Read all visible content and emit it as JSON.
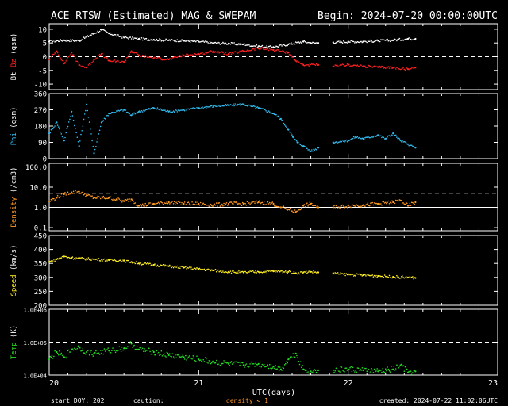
{
  "header": {
    "title": "ACE RTSW (Estimated) MAG & SWEPAM",
    "begin": "Begin: 2024-07-20 00:00:00UTC"
  },
  "footer": {
    "start_doy": "start DOY: 202",
    "caution": "caution:",
    "density_note": "density < 1",
    "created": "created: 2024-07-22 11:02:06UTC"
  },
  "colors": {
    "background": "#000000",
    "frame": "#ffffff",
    "bt": "#ffffff",
    "bz": "#ff2020",
    "phi": "#33bbee",
    "density": "#ff9922",
    "speed": "#ffee22",
    "temp": "#22dd22"
  },
  "chart_data": {
    "type": "scatter",
    "x_axis": {
      "label": "UTC(days)",
      "range_days": [
        20,
        23
      ],
      "ticks": [
        "20",
        "21",
        "22",
        "23"
      ]
    },
    "panels": [
      {
        "id": "mag",
        "ylabel_parts": [
          "Bt",
          "Bz",
          "(gsm)"
        ],
        "ylim": [
          -12,
          12
        ],
        "yticks": [
          10,
          5,
          0,
          -5,
          -10
        ],
        "ref_lines": [
          0
        ],
        "series": [
          {
            "name": "Bt",
            "color_key": "bt",
            "points": [
              [
                20.0,
                5.5
              ],
              [
                20.1,
                6.0
              ],
              [
                20.2,
                5.8
              ],
              [
                20.3,
                8.5
              ],
              [
                20.35,
                9.8
              ],
              [
                20.4,
                8.5
              ],
              [
                20.5,
                7.0
              ],
              [
                20.6,
                6.5
              ],
              [
                20.7,
                6.2
              ],
              [
                20.8,
                6.0
              ],
              [
                20.9,
                5.8
              ],
              [
                21.0,
                5.5
              ],
              [
                21.1,
                5.0
              ],
              [
                21.2,
                4.8
              ],
              [
                21.3,
                4.5
              ],
              [
                21.4,
                3.8
              ],
              [
                21.5,
                3.5
              ],
              [
                21.6,
                4.5
              ],
              [
                21.7,
                5.5
              ],
              [
                21.75,
                5.0
              ],
              [
                21.8,
                5.0
              ],
              [
                21.9,
                5.2
              ],
              [
                22.0,
                5.5
              ],
              [
                22.1,
                5.5
              ],
              [
                22.2,
                5.8
              ],
              [
                22.3,
                6.0
              ],
              [
                22.4,
                6.5
              ],
              [
                22.45,
                6.5
              ]
            ],
            "gaps_after_x": [
              21.8
            ]
          },
          {
            "name": "Bz",
            "color_key": "bz",
            "points": [
              [
                20.0,
                -1.0
              ],
              [
                20.05,
                2.0
              ],
              [
                20.1,
                -2.5
              ],
              [
                20.15,
                1.5
              ],
              [
                20.2,
                -3.0
              ],
              [
                20.25,
                -4.0
              ],
              [
                20.3,
                -1.0
              ],
              [
                20.35,
                1.0
              ],
              [
                20.4,
                -1.5
              ],
              [
                20.5,
                -2.0
              ],
              [
                20.55,
                2.0
              ],
              [
                20.6,
                0.5
              ],
              [
                20.7,
                -0.5
              ],
              [
                20.8,
                -1.0
              ],
              [
                20.9,
                0.5
              ],
              [
                21.0,
                1.0
              ],
              [
                21.1,
                2.0
              ],
              [
                21.2,
                1.0
              ],
              [
                21.3,
                2.0
              ],
              [
                21.4,
                3.0
              ],
              [
                21.5,
                2.5
              ],
              [
                21.6,
                1.5
              ],
              [
                21.65,
                -1.5
              ],
              [
                21.7,
                -3.0
              ],
              [
                21.8,
                -3.0
              ],
              [
                21.9,
                -3.5
              ],
              [
                22.0,
                -3.0
              ],
              [
                22.1,
                -3.5
              ],
              [
                22.2,
                -3.8
              ],
              [
                22.3,
                -4.0
              ],
              [
                22.4,
                -4.5
              ],
              [
                22.45,
                -4.0
              ]
            ],
            "gaps_after_x": [
              21.8
            ]
          }
        ]
      },
      {
        "id": "phi",
        "ylabel_parts": [
          "Phi",
          "(gsm)"
        ],
        "ylim": [
          0,
          360
        ],
        "yticks": [
          360,
          270,
          180,
          90,
          0
        ],
        "ref_lines": [],
        "series": [
          {
            "name": "Phi",
            "color_key": "phi",
            "points": [
              [
                20.0,
                140
              ],
              [
                20.05,
                200
              ],
              [
                20.1,
                100
              ],
              [
                20.15,
                260
              ],
              [
                20.2,
                70
              ],
              [
                20.25,
                300
              ],
              [
                20.3,
                30
              ],
              [
                20.35,
                200
              ],
              [
                20.4,
                250
              ],
              [
                20.5,
                270
              ],
              [
                20.55,
                240
              ],
              [
                20.6,
                260
              ],
              [
                20.7,
                280
              ],
              [
                20.8,
                260
              ],
              [
                20.9,
                270
              ],
              [
                21.0,
                280
              ],
              [
                21.1,
                290
              ],
              [
                21.2,
                295
              ],
              [
                21.3,
                300
              ],
              [
                21.4,
                280
              ],
              [
                21.5,
                250
              ],
              [
                21.55,
                220
              ],
              [
                21.6,
                160
              ],
              [
                21.63,
                120
              ],
              [
                21.66,
                90
              ],
              [
                21.7,
                70
              ],
              [
                21.75,
                40
              ],
              [
                21.8,
                60
              ],
              [
                21.9,
                90
              ],
              [
                22.0,
                100
              ],
              [
                22.05,
                120
              ],
              [
                22.1,
                110
              ],
              [
                22.2,
                130
              ],
              [
                22.25,
                110
              ],
              [
                22.3,
                140
              ],
              [
                22.35,
                100
              ],
              [
                22.4,
                80
              ],
              [
                22.45,
                60
              ]
            ],
            "gaps_after_x": [
              21.8
            ]
          }
        ]
      },
      {
        "id": "density",
        "ylabel_parts": [
          "Density",
          "(/cm3)"
        ],
        "yscale": "log",
        "ylim": [
          0.07,
          150
        ],
        "yticks": [
          100.0,
          10.0,
          1.0,
          0.1
        ],
        "ytick_labels": [
          "100.0",
          "10.0",
          "1.0",
          "0.1"
        ],
        "ref_lines": [
          5,
          1
        ],
        "series": [
          {
            "name": "Density",
            "color_key": "density",
            "points": [
              [
                20.0,
                2.0
              ],
              [
                20.05,
                3.0
              ],
              [
                20.1,
                4.5
              ],
              [
                20.15,
                5.5
              ],
              [
                20.2,
                6.0
              ],
              [
                20.25,
                4.0
              ],
              [
                20.3,
                3.0
              ],
              [
                20.4,
                3.0
              ],
              [
                20.45,
                2.5
              ],
              [
                20.5,
                2.0
              ],
              [
                20.55,
                2.5
              ],
              [
                20.6,
                1.2
              ],
              [
                20.7,
                1.5
              ],
              [
                20.8,
                1.8
              ],
              [
                20.9,
                1.5
              ],
              [
                21.0,
                1.5
              ],
              [
                21.1,
                1.3
              ],
              [
                21.2,
                1.5
              ],
              [
                21.3,
                1.5
              ],
              [
                21.4,
                1.8
              ],
              [
                21.5,
                1.5
              ],
              [
                21.55,
                1.0
              ],
              [
                21.6,
                0.8
              ],
              [
                21.65,
                0.6
              ],
              [
                21.7,
                1.2
              ],
              [
                21.75,
                1.5
              ],
              [
                21.8,
                1.0
              ],
              [
                21.9,
                1.0
              ],
              [
                22.0,
                1.2
              ],
              [
                22.1,
                1.3
              ],
              [
                22.2,
                1.5
              ],
              [
                22.3,
                1.8
              ],
              [
                22.35,
                2.2
              ],
              [
                22.4,
                1.2
              ],
              [
                22.45,
                1.8
              ]
            ],
            "gaps_after_x": [
              21.8
            ]
          }
        ]
      },
      {
        "id": "speed",
        "ylabel_parts": [
          "Speed",
          "(km/s)"
        ],
        "ylim": [
          200,
          450
        ],
        "yticks": [
          450,
          400,
          350,
          300,
          250,
          200
        ],
        "ref_lines": [],
        "series": [
          {
            "name": "Speed",
            "color_key": "speed",
            "points": [
              [
                20.0,
                355
              ],
              [
                20.05,
                365
              ],
              [
                20.1,
                375
              ],
              [
                20.15,
                370
              ],
              [
                20.2,
                368
              ],
              [
                20.3,
                365
              ],
              [
                20.4,
                362
              ],
              [
                20.5,
                360
              ],
              [
                20.55,
                355
              ],
              [
                20.6,
                350
              ],
              [
                20.7,
                345
              ],
              [
                20.8,
                340
              ],
              [
                20.9,
                335
              ],
              [
                21.0,
                330
              ],
              [
                21.1,
                325
              ],
              [
                21.2,
                320
              ],
              [
                21.3,
                318
              ],
              [
                21.4,
                320
              ],
              [
                21.5,
                322
              ],
              [
                21.6,
                320
              ],
              [
                21.65,
                315
              ],
              [
                21.7,
                318
              ],
              [
                21.75,
                320
              ],
              [
                21.8,
                318
              ],
              [
                21.9,
                315
              ],
              [
                22.0,
                310
              ],
              [
                22.1,
                308
              ],
              [
                22.2,
                305
              ],
              [
                22.3,
                302
              ],
              [
                22.4,
                300
              ],
              [
                22.45,
                298
              ]
            ],
            "gaps_after_x": [
              21.8
            ]
          }
        ]
      },
      {
        "id": "temp",
        "ylabel_parts": [
          "Temp",
          "(K)"
        ],
        "yscale": "log",
        "ylim": [
          10000,
          1000000
        ],
        "yticks": [
          1000000,
          100000,
          10000
        ],
        "ytick_labels": [
          "1.0E+06",
          "1.0E+05",
          "1.0E+04"
        ],
        "ref_lines": [
          100000
        ],
        "series": [
          {
            "name": "Temp",
            "color_key": "temp",
            "points": [
              [
                20.0,
                30000
              ],
              [
                20.05,
                50000
              ],
              [
                20.1,
                35000
              ],
              [
                20.15,
                60000
              ],
              [
                20.2,
                70000
              ],
              [
                20.25,
                50000
              ],
              [
                20.3,
                45000
              ],
              [
                20.4,
                55000
              ],
              [
                20.5,
                65000
              ],
              [
                20.55,
                90000
              ],
              [
                20.6,
                60000
              ],
              [
                20.7,
                50000
              ],
              [
                20.8,
                40000
              ],
              [
                20.9,
                35000
              ],
              [
                21.0,
                30000
              ],
              [
                21.1,
                25000
              ],
              [
                21.2,
                22000
              ],
              [
                21.3,
                20000
              ],
              [
                21.4,
                22000
              ],
              [
                21.5,
                18000
              ],
              [
                21.55,
                15000
              ],
              [
                21.6,
                30000
              ],
              [
                21.65,
                45000
              ],
              [
                21.7,
                15000
              ],
              [
                21.75,
                13000
              ],
              [
                21.8,
                14000
              ],
              [
                21.9,
                14000
              ],
              [
                22.0,
                15000
              ],
              [
                22.1,
                14000
              ],
              [
                22.2,
                13000
              ],
              [
                22.3,
                15000
              ],
              [
                22.35,
                20000
              ],
              [
                22.4,
                12000
              ],
              [
                22.45,
                13000
              ]
            ],
            "gaps_after_x": [
              21.8
            ]
          }
        ]
      }
    ]
  }
}
